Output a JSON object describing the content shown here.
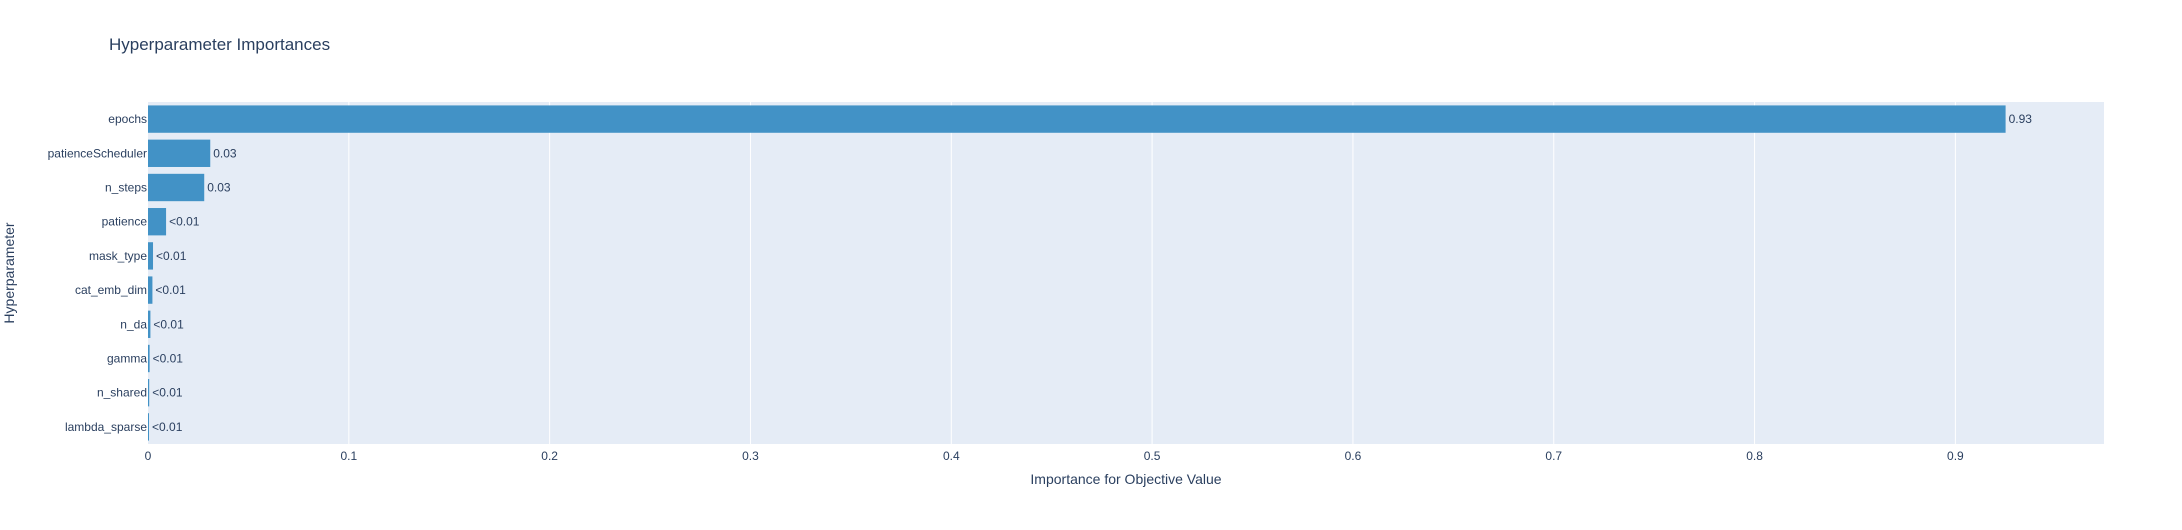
{
  "chart_data": {
    "type": "bar",
    "orientation": "horizontal",
    "title": "Hyperparameter Importances",
    "xlabel": "Importance for Objective Value",
    "ylabel": "Hyperparameter",
    "categories": [
      "epochs",
      "patienceScheduler",
      "n_steps",
      "patience",
      "mask_type",
      "cat_emb_dim",
      "n_da",
      "gamma",
      "n_shared",
      "lambda_sparse"
    ],
    "values": [
      0.925,
      0.031,
      0.028,
      0.009,
      0.0025,
      0.0022,
      0.0012,
      0.0008,
      0.0006,
      0.0005
    ],
    "data_labels": [
      "0.93",
      "0.03",
      "0.03",
      "<0.01",
      "<0.01",
      "<0.01",
      "<0.01",
      "<0.01",
      "<0.01",
      "<0.01"
    ],
    "xlim": [
      0,
      0.974
    ],
    "xticks": [
      0,
      0.1,
      0.2,
      0.3,
      0.4,
      0.5,
      0.6,
      0.7,
      0.8,
      0.9
    ],
    "xtick_labels": [
      "0",
      "0.1",
      "0.2",
      "0.3",
      "0.4",
      "0.5",
      "0.6",
      "0.7",
      "0.8",
      "0.9"
    ],
    "grid": true,
    "legend": "none",
    "colors": {
      "bar": "#4292c6",
      "plot_bg": "#e5ecf6",
      "grid": "#ffffff",
      "text": "#2a3f5f"
    }
  }
}
